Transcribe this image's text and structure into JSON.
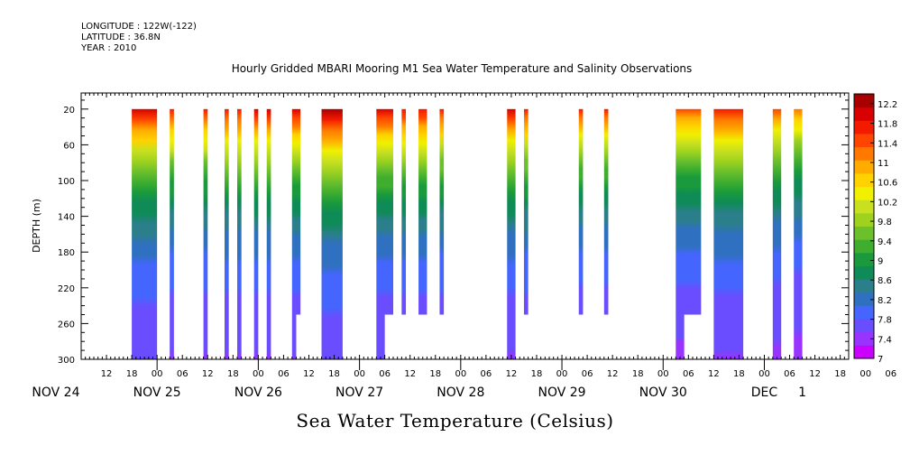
{
  "meta": {
    "longitude": "LONGITUDE : 122W(-122)",
    "latitude": "LATITUDE : 36.8N",
    "year": "YEAR : 2010"
  },
  "chart_data": {
    "type": "heatmap",
    "title": "Hourly Gridded MBARI Mooring M1 Sea Water Temperature and Salinity Observations",
    "xlabel_title": "Sea Water Temperature (Celsius)",
    "ylabel": "DEPTH (m)",
    "x_unit": "hours since NOV 24 00:00",
    "xlim": [
      6,
      188
    ],
    "ylim": [
      300,
      2
    ],
    "y_ticks": [
      20,
      60,
      100,
      140,
      180,
      220,
      260,
      300
    ],
    "hour_ticks": [
      "12",
      "18",
      "00",
      "06",
      "12",
      "18",
      "00",
      "06",
      "12",
      "18",
      "00",
      "06",
      "12",
      "18",
      "00",
      "06",
      "12",
      "18",
      "00",
      "06",
      "12",
      "18",
      "00",
      "06",
      "12",
      "18",
      "00",
      "06",
      "12",
      "18",
      "00",
      "06"
    ],
    "date_labels": [
      {
        "label": "NOV 24",
        "hour": 0
      },
      {
        "label": "NOV 25",
        "hour": 24
      },
      {
        "label": "NOV 26",
        "hour": 48
      },
      {
        "label": "NOV 27",
        "hour": 72
      },
      {
        "label": "NOV 28",
        "hour": 96
      },
      {
        "label": "NOV 29",
        "hour": 120
      },
      {
        "label": "NOV 30",
        "hour": 144
      },
      {
        "label": "DEC",
        "hour": 168
      },
      {
        "label": "1",
        "hour": 177
      }
    ],
    "colorbar": {
      "tick_labels": [
        "7",
        "7.4",
        "7.8",
        "8.2",
        "8.6",
        "9",
        "9.4",
        "9.8",
        "10.2",
        "10.6",
        "11",
        "11.4",
        "11.8",
        "12.2"
      ],
      "range": [
        7,
        12.4
      ],
      "colors": [
        "#cc00ff",
        "#9933ff",
        "#6a4dff",
        "#4466ff",
        "#3070c0",
        "#2a7f8a",
        "#0e8b57",
        "#1a9a3c",
        "#3fae2f",
        "#6cc02c",
        "#9ed21f",
        "#c8e020",
        "#f0f000",
        "#ffd200",
        "#ffab00",
        "#ff7800",
        "#ff4500",
        "#f41a00",
        "#d80000",
        "#a80000"
      ]
    },
    "columns": [
      {
        "start": 18,
        "end": 24,
        "bottom": 300,
        "top": 20,
        "peak": 12.0
      },
      {
        "start": 27,
        "end": 28,
        "bottom": 300,
        "top": 20,
        "peak": 11.7
      },
      {
        "start": 35,
        "end": 36,
        "bottom": 300,
        "top": 20,
        "peak": 11.7
      },
      {
        "start": 40,
        "end": 41,
        "bottom": 300,
        "top": 20,
        "peak": 11.8
      },
      {
        "start": 43,
        "end": 44,
        "bottom": 300,
        "top": 20,
        "peak": 11.8
      },
      {
        "start": 47,
        "end": 48,
        "bottom": 300,
        "top": 20,
        "peak": 11.9
      },
      {
        "start": 50,
        "end": 51,
        "bottom": 300,
        "top": 20,
        "peak": 11.9
      },
      {
        "start": 56,
        "end": 58,
        "bottom": 250,
        "top": 20,
        "peak": 11.9
      },
      {
        "start": 56,
        "end": 57,
        "bottom": 300,
        "top": 250,
        "peak": 11.9
      },
      {
        "start": 63,
        "end": 68,
        "bottom": 300,
        "top": 20,
        "peak": 12.4
      },
      {
        "start": 76,
        "end": 80,
        "bottom": 250,
        "top": 20,
        "peak": 12.0
      },
      {
        "start": 76,
        "end": 78,
        "bottom": 300,
        "top": 250,
        "peak": 12.0
      },
      {
        "start": 82,
        "end": 83,
        "bottom": 250,
        "top": 20,
        "peak": 11.8
      },
      {
        "start": 86,
        "end": 88,
        "bottom": 250,
        "top": 20,
        "peak": 11.8
      },
      {
        "start": 91,
        "end": 92,
        "bottom": 250,
        "top": 20,
        "peak": 11.7
      },
      {
        "start": 107,
        "end": 109,
        "bottom": 300,
        "top": 20,
        "peak": 11.9
      },
      {
        "start": 111,
        "end": 112,
        "bottom": 250,
        "top": 20,
        "peak": 11.7
      },
      {
        "start": 124,
        "end": 125,
        "bottom": 250,
        "top": 20,
        "peak": 11.6
      },
      {
        "start": 130,
        "end": 131,
        "bottom": 250,
        "top": 20,
        "peak": 11.6
      },
      {
        "start": 147,
        "end": 153,
        "bottom": 250,
        "top": 20,
        "peak": 11.4
      },
      {
        "start": 147,
        "end": 149,
        "bottom": 300,
        "top": 250,
        "peak": 11.4
      },
      {
        "start": 156,
        "end": 163,
        "bottom": 300,
        "top": 20,
        "peak": 11.8
      },
      {
        "start": 170,
        "end": 172,
        "bottom": 300,
        "top": 20,
        "peak": 11.4
      },
      {
        "start": 175,
        "end": 177,
        "bottom": 300,
        "top": 20,
        "peak": 11.1
      }
    ]
  }
}
